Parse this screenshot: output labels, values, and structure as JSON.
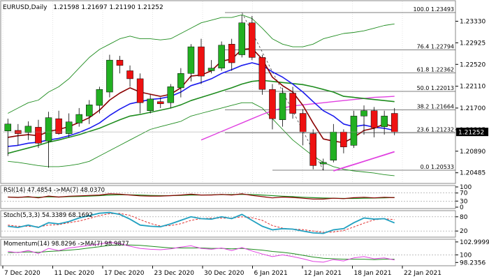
{
  "chart_data": {
    "type": "candlestick",
    "symbol": "EURUSD",
    "timeframe": "Daily",
    "ohlc_header": [
      "1.21598",
      "1.21697",
      "1.21190",
      "1.21252"
    ],
    "current_price": "1.21252",
    "ylim": [
      1.2035,
      1.2365
    ],
    "price_ticks": [
      "1.23330",
      "1.22925",
      "1.22520",
      "1.22110",
      "1.21700",
      "1.21295",
      "1.20890",
      "1.20485"
    ],
    "date_labels": [
      "7 Dec 2020",
      "11 Dec 2020",
      "17 Dec 2020",
      "23 Dec 2020",
      "30 Dec 2020",
      "6 Jan 2021",
      "12 Jan 2021",
      "18 Jan 2021",
      "22 Jan 2021"
    ],
    "candles": [
      {
        "o": 1.2127,
        "h": 1.215,
        "l": 1.208,
        "c": 1.214
      },
      {
        "o": 1.2128,
        "h": 1.214,
        "l": 1.21,
        "c": 1.2122
      },
      {
        "o": 1.2124,
        "h": 1.2145,
        "l": 1.211,
        "c": 1.2136
      },
      {
        "o": 1.2134,
        "h": 1.2148,
        "l": 1.2095,
        "c": 1.2104
      },
      {
        "o": 1.2108,
        "h": 1.2163,
        "l": 1.2058,
        "c": 1.2152
      },
      {
        "o": 1.215,
        "h": 1.2165,
        "l": 1.212,
        "c": 1.2122
      },
      {
        "o": 1.2122,
        "h": 1.216,
        "l": 1.2115,
        "c": 1.2144
      },
      {
        "o": 1.2142,
        "h": 1.217,
        "l": 1.2135,
        "c": 1.2158
      },
      {
        "o": 1.2155,
        "h": 1.2185,
        "l": 1.214,
        "c": 1.2176
      },
      {
        "o": 1.2175,
        "h": 1.221,
        "l": 1.216,
        "c": 1.2205
      },
      {
        "o": 1.22,
        "h": 1.227,
        "l": 1.219,
        "c": 1.226
      },
      {
        "o": 1.226,
        "h": 1.2268,
        "l": 1.2235,
        "c": 1.225
      },
      {
        "o": 1.224,
        "h": 1.225,
        "l": 1.221,
        "c": 1.2225
      },
      {
        "o": 1.2225,
        "h": 1.2235,
        "l": 1.216,
        "c": 1.218
      },
      {
        "o": 1.2165,
        "h": 1.2195,
        "l": 1.216,
        "c": 1.2187
      },
      {
        "o": 1.2182,
        "h": 1.219,
        "l": 1.217,
        "c": 1.2178
      },
      {
        "o": 1.218,
        "h": 1.2215,
        "l": 1.217,
        "c": 1.221
      },
      {
        "o": 1.2208,
        "h": 1.2245,
        "l": 1.219,
        "c": 1.2235
      },
      {
        "o": 1.2235,
        "h": 1.229,
        "l": 1.222,
        "c": 1.2285
      },
      {
        "o": 1.2285,
        "h": 1.23,
        "l": 1.2215,
        "c": 1.223
      },
      {
        "o": 1.224,
        "h": 1.226,
        "l": 1.2235,
        "c": 1.2245
      },
      {
        "o": 1.2245,
        "h": 1.2295,
        "l": 1.224,
        "c": 1.2288
      },
      {
        "o": 1.229,
        "h": 1.23,
        "l": 1.224,
        "c": 1.2255
      },
      {
        "o": 1.227,
        "h": 1.2345,
        "l": 1.2265,
        "c": 1.233
      },
      {
        "o": 1.233,
        "h": 1.2343,
        "l": 1.226,
        "c": 1.2265
      },
      {
        "o": 1.2265,
        "h": 1.227,
        "l": 1.2195,
        "c": 1.2205
      },
      {
        "o": 1.2205,
        "h": 1.2215,
        "l": 1.213,
        "c": 1.215
      },
      {
        "o": 1.2148,
        "h": 1.2208,
        "l": 1.2135,
        "c": 1.2198
      },
      {
        "o": 1.2198,
        "h": 1.221,
        "l": 1.215,
        "c": 1.216
      },
      {
        "o": 1.216,
        "h": 1.2168,
        "l": 1.21,
        "c": 1.2125
      },
      {
        "o": 1.2122,
        "h": 1.213,
        "l": 1.2055,
        "c": 1.2062
      },
      {
        "o": 1.2065,
        "h": 1.2075,
        "l": 1.2053,
        "c": 1.2068
      },
      {
        "o": 1.2072,
        "h": 1.214,
        "l": 1.2068,
        "c": 1.2125
      },
      {
        "o": 1.2125,
        "h": 1.213,
        "l": 1.2085,
        "c": 1.2097
      },
      {
        "o": 1.21,
        "h": 1.2165,
        "l": 1.2095,
        "c": 1.2155
      },
      {
        "o": 1.2155,
        "h": 1.2175,
        "l": 1.212,
        "c": 1.2165
      },
      {
        "o": 1.2165,
        "h": 1.2172,
        "l": 1.2115,
        "c": 1.2133
      },
      {
        "o": 1.2135,
        "h": 1.2165,
        "l": 1.212,
        "c": 1.2155
      },
      {
        "o": 1.216,
        "h": 1.217,
        "l": 1.2119,
        "c": 1.2125
      }
    ],
    "fibonacci": [
      {
        "label": "100.0 1.23493",
        "price": 1.23493
      },
      {
        "label": "76.4 1.22794",
        "price": 1.22794
      },
      {
        "label": "61.8 1.22362",
        "price": 1.22362
      },
      {
        "label": "50.0 1.22013",
        "price": 1.22013
      },
      {
        "label": "38.2 1.21664",
        "price": 1.21664
      },
      {
        "label": "23.6 1.21232",
        "price": 1.21232
      },
      {
        "label": "0.0 1.20533",
        "price": 1.20533
      }
    ],
    "moving_averages": {
      "maroon": [
        1.2115,
        1.2118,
        1.212,
        1.2118,
        1.2126,
        1.213,
        1.2135,
        1.2143,
        1.2152,
        1.2166,
        1.2185,
        1.2198,
        1.2208,
        1.22,
        1.2196,
        1.2192,
        1.2196,
        1.2208,
        1.223,
        1.2232,
        1.224,
        1.2258,
        1.2262,
        1.228,
        1.2282,
        1.2262,
        1.2228,
        1.2212,
        1.22,
        1.2175,
        1.2142,
        1.2112,
        1.2108,
        1.2105,
        1.2115,
        1.2128,
        1.2132,
        1.214,
        1.2135
      ],
      "blue": [
        1.2098,
        1.21,
        1.2104,
        1.2106,
        1.211,
        1.2113,
        1.2118,
        1.2124,
        1.2132,
        1.2142,
        1.2156,
        1.2168,
        1.2178,
        1.2182,
        1.2186,
        1.2188,
        1.2192,
        1.22,
        1.2212,
        1.2218,
        1.2225,
        1.2235,
        1.2242,
        1.225,
        1.2255,
        1.225,
        1.2238,
        1.2228,
        1.2215,
        1.22,
        1.2182,
        1.2165,
        1.2155,
        1.214,
        1.2135,
        1.2138,
        1.2134,
        1.2132,
        1.2128
      ],
      "green": [
        1.2085,
        1.209,
        1.2095,
        1.21,
        1.2106,
        1.211,
        1.2115,
        1.212,
        1.2126,
        1.2132,
        1.214,
        1.2148,
        1.2155,
        1.2158,
        1.2162,
        1.2166,
        1.217,
        1.2176,
        1.2184,
        1.219,
        1.2196,
        1.2202,
        1.2208,
        1.2215,
        1.222,
        1.2222,
        1.222,
        1.2218,
        1.2216,
        1.2214,
        1.221,
        1.2205,
        1.22,
        1.2192,
        1.219,
        1.2188,
        1.2186,
        1.2184,
        1.2182
      ],
      "magenta": [
        null,
        null,
        null,
        null,
        null,
        null,
        null,
        null,
        null,
        null,
        null,
        null,
        null,
        null,
        null,
        null,
        null,
        null,
        null,
        1.211,
        1.2118,
        1.2126,
        1.2134,
        1.2142,
        1.215,
        1.2158,
        1.2165,
        1.217,
        1.2174,
        1.2176,
        1.2178,
        1.218,
        1.2182,
        1.2184,
        1.2186,
        1.2188,
        1.219,
        1.2191,
        1.2192
      ],
      "magenta2": [
        null,
        null,
        null,
        null,
        null,
        null,
        null,
        null,
        null,
        null,
        null,
        null,
        null,
        null,
        null,
        null,
        null,
        null,
        null,
        null,
        null,
        null,
        null,
        null,
        null,
        null,
        null,
        null,
        null,
        null,
        null,
        null,
        1.2052,
        1.2058,
        1.2064,
        1.207,
        1.2076,
        1.2082,
        1.2088
      ],
      "upper_band": [
        1.216,
        1.217,
        1.218,
        1.2185,
        1.22,
        1.221,
        1.2225,
        1.2245,
        1.2265,
        1.228,
        1.229,
        1.23,
        1.2305,
        1.23,
        1.23,
        1.2298,
        1.23,
        1.231,
        1.232,
        1.233,
        1.2335,
        1.234,
        1.234,
        1.2345,
        1.2338,
        1.232,
        1.23,
        1.229,
        1.2285,
        1.2285,
        1.229,
        1.23,
        1.2305,
        1.231,
        1.2312,
        1.2315,
        1.232,
        1.2325,
        1.2328
      ],
      "lower_band": [
        1.207,
        1.2068,
        1.2065,
        1.2062,
        1.206,
        1.206,
        1.2062,
        1.2065,
        1.207,
        1.208,
        1.209,
        1.21,
        1.211,
        1.212,
        1.213,
        1.2135,
        1.214,
        1.2145,
        1.2155,
        1.216,
        1.2165,
        1.217,
        1.2175,
        1.218,
        1.218,
        1.217,
        1.215,
        1.213,
        1.211,
        1.2095,
        1.208,
        1.2068,
        1.206,
        1.2055,
        1.2052,
        1.205,
        1.2048,
        1.2045,
        1.2043
      ]
    },
    "rsi_panel": {
      "label": "RSI(14) 47.4854 ->MA(7) 48.0370",
      "ticks": [
        "100",
        "70",
        "30",
        "0"
      ],
      "rsi": [
        50,
        48,
        52,
        46,
        55,
        50,
        54,
        56,
        58,
        60,
        66,
        64,
        60,
        56,
        55,
        55,
        57,
        60,
        64,
        60,
        60,
        63,
        60,
        66,
        58,
        52,
        46,
        50,
        48,
        44,
        40,
        40,
        44,
        42,
        47,
        49,
        46,
        49,
        47
      ],
      "ma": [
        50,
        49,
        50,
        49,
        51,
        50,
        52,
        53,
        55,
        57,
        60,
        61,
        61,
        60,
        58,
        57,
        57,
        58,
        60,
        60,
        61,
        62,
        62,
        63,
        62,
        60,
        57,
        54,
        52,
        49,
        47,
        45,
        44,
        43,
        43,
        44,
        45,
        46,
        48
      ]
    },
    "stoch_panel": {
      "label": "Stoch(5,3,3) 54.3389 68.1692",
      "ticks": [
        "80",
        "20"
      ],
      "k": [
        40,
        35,
        45,
        35,
        55,
        50,
        60,
        75,
        85,
        95,
        98,
        90,
        70,
        45,
        40,
        38,
        50,
        65,
        80,
        72,
        70,
        80,
        72,
        90,
        65,
        40,
        25,
        30,
        28,
        20,
        12,
        10,
        25,
        30,
        55,
        75,
        70,
        72,
        54
      ],
      "d": [
        45,
        40,
        40,
        38,
        45,
        47,
        55,
        62,
        73,
        85,
        93,
        94,
        86,
        68,
        52,
        41,
        43,
        51,
        65,
        72,
        74,
        74,
        74,
        80,
        76,
        65,
        43,
        32,
        28,
        26,
        20,
        14,
        16,
        22,
        37,
        53,
        67,
        72,
        68
      ]
    },
    "momentum_panel": {
      "label": "Momentum(14) 98.8296 ->MA(7) 98.9877",
      "ticks": [
        "102.9999",
        "100",
        "98.2356"
      ],
      "mom": [
        100.8,
        100.5,
        101.0,
        100.3,
        101.5,
        101.0,
        101.6,
        101.9,
        102.2,
        102.5,
        102.9,
        102.6,
        102.0,
        101.5,
        101.3,
        101.2,
        101.4,
        101.8,
        102.1,
        101.5,
        101.3,
        101.6,
        101.0,
        101.7,
        100.9,
        100.2,
        99.6,
        100.0,
        99.6,
        99.1,
        98.5,
        98.3,
        98.9,
        98.6,
        99.3,
        99.6,
        99.1,
        99.3,
        98.8
      ],
      "ma": [
        100.5,
        100.6,
        100.7,
        100.6,
        100.8,
        100.9,
        101.1,
        101.3,
        101.6,
        101.9,
        102.2,
        102.3,
        102.3,
        102.2,
        102.0,
        101.8,
        101.6,
        101.6,
        101.6,
        101.6,
        101.5,
        101.5,
        101.4,
        101.5,
        101.3,
        101.1,
        100.8,
        100.6,
        100.3,
        99.9,
        99.5,
        99.2,
        99.1,
        99.0,
        99.0,
        99.0,
        98.9,
        99.0,
        99.0
      ]
    },
    "colors": {
      "bull": "#22b022",
      "bear": "#ee1111",
      "maroon": "#8b0000",
      "blue": "#1a1aee",
      "green": "#1e8c1e",
      "magenta": "#e040e0",
      "band": "#1e8c1e",
      "price_tag_bg": "#000000"
    }
  }
}
